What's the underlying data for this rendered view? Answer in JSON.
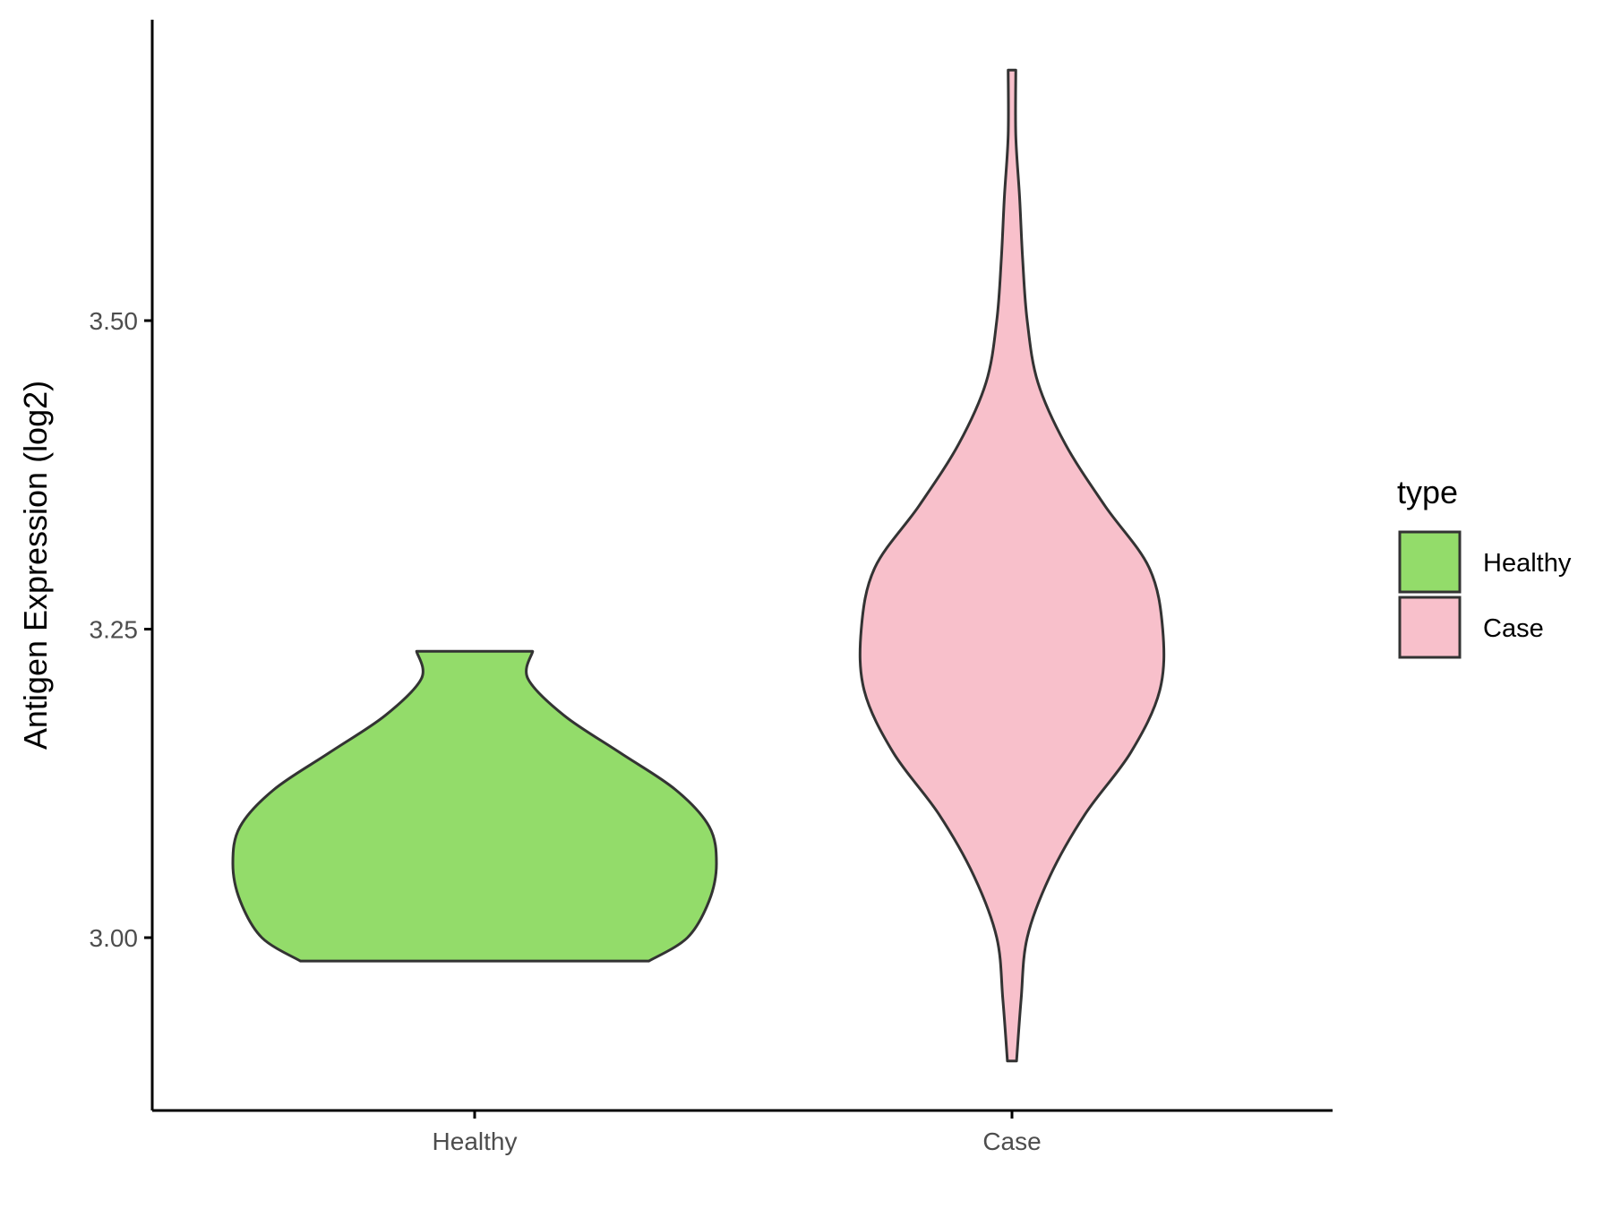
{
  "chart_data": {
    "type": "violin",
    "ylabel": "Antigen Expression (log2)",
    "xlabel": "",
    "categories": [
      "Healthy",
      "Case"
    ],
    "ylim": [
      2.86,
      3.74
    ],
    "yticks": [
      3.0,
      3.25,
      3.5
    ],
    "ytick_labels": [
      "3.00",
      "3.25",
      "3.50"
    ],
    "grid": false,
    "legend": {
      "title": "type",
      "placement": "right",
      "entries": [
        "Healthy",
        "Case"
      ]
    },
    "colors": {
      "Healthy": "#93dc6a",
      "Case": "#f8c0cb",
      "outline": "#333333",
      "axis": "#000000"
    },
    "series": [
      {
        "category": "Healthy",
        "min": 2.981,
        "max": 3.232,
        "density_profile": [
          [
            2.981,
            0.72
          ],
          [
            3.0,
            0.88
          ],
          [
            3.03,
            0.97
          ],
          [
            3.06,
            1.0
          ],
          [
            3.09,
            0.97
          ],
          [
            3.12,
            0.83
          ],
          [
            3.15,
            0.6
          ],
          [
            3.18,
            0.37
          ],
          [
            3.21,
            0.22
          ],
          [
            3.232,
            0.24
          ]
        ]
      },
      {
        "category": "Case",
        "min": 2.9,
        "max": 3.703,
        "density_profile": [
          [
            2.9,
            0.03
          ],
          [
            2.95,
            0.06
          ],
          [
            3.0,
            0.1
          ],
          [
            3.05,
            0.25
          ],
          [
            3.1,
            0.48
          ],
          [
            3.15,
            0.78
          ],
          [
            3.2,
            0.97
          ],
          [
            3.25,
            0.99
          ],
          [
            3.3,
            0.9
          ],
          [
            3.35,
            0.61
          ],
          [
            3.4,
            0.35
          ],
          [
            3.45,
            0.17
          ],
          [
            3.5,
            0.1
          ],
          [
            3.55,
            0.07
          ],
          [
            3.6,
            0.05
          ],
          [
            3.65,
            0.025
          ],
          [
            3.703,
            0.025
          ]
        ]
      }
    ]
  }
}
